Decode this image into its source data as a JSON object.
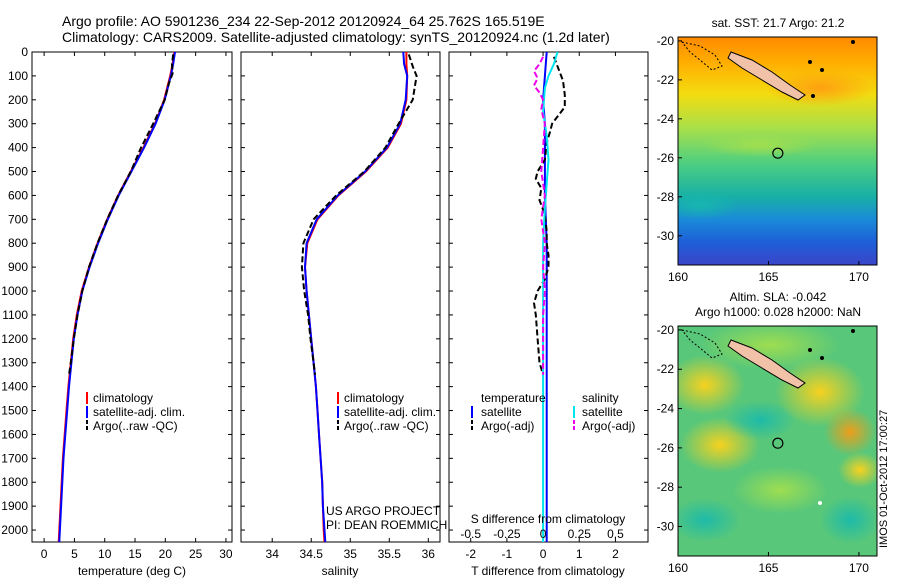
{
  "header": {
    "title_line1": "Argo profile: AO 5901236_234 22-Sep-2012 20120924_64 25.762S 165.519E",
    "title_line2": "Climatology: CARS2009. Satellite-adjusted climatology: synTS_20120924.nc (1.2d later)"
  },
  "timestamp": "IMOS 01-Oct-2012 17:00:27",
  "colors": {
    "climatology": "#ff0000",
    "satellite": "#0000ff",
    "argo": "#000000",
    "s_satellite": "#00e5ee",
    "s_argo": "#ee00ee"
  },
  "panels": {
    "temperature": {
      "xlabel": "temperature (deg C)",
      "legend": [
        "climatology",
        "satellite-adj. clim.",
        "Argo(..raw -QC)"
      ]
    },
    "salinity": {
      "xlabel": "salinity",
      "legend": [
        "climatology",
        "satellite-adj. clim.",
        "Argo(..raw -QC)"
      ],
      "project_line1": "US ARGO PROJECT",
      "project_line2": "PI: DEAN ROEMMICH"
    },
    "difference": {
      "top_label": "S difference from climatology",
      "xlabel": "T difference from climatology",
      "legend_t_header": "temperature",
      "legend_s_header": "salinity",
      "legend_t": [
        "satellite",
        "Argo(-adj)"
      ],
      "legend_s": [
        "satellite",
        "Argo(-adj)"
      ]
    },
    "map_sst": {
      "title": "sat. SST: 21.7 Argo: 21.2"
    },
    "map_sla": {
      "title_line1": "Altim. SLA: -0.042",
      "title_line2": "Argo h1000: 0.028 h2000: NaN"
    }
  },
  "chart_data": [
    {
      "type": "line",
      "name": "temperature-profile",
      "xlabel": "temperature (deg C)",
      "ylabel": "",
      "xlim": [
        -2,
        31
      ],
      "ylim": [
        2050,
        0
      ],
      "x_ticks": [
        0,
        5,
        10,
        15,
        20,
        25,
        30
      ],
      "y_ticks": [
        0,
        100,
        200,
        300,
        400,
        500,
        600,
        700,
        800,
        900,
        1000,
        1100,
        1200,
        1300,
        1400,
        1500,
        1600,
        1700,
        1800,
        1900,
        2000
      ],
      "legend_position": "lower-center",
      "series": [
        {
          "name": "climatology",
          "color": "#ff0000",
          "points": [
            [
              21.5,
              0
            ],
            [
              21.2,
              50
            ],
            [
              20.8,
              100
            ],
            [
              19.8,
              200
            ],
            [
              18.3,
              300
            ],
            [
              16.4,
              400
            ],
            [
              14.3,
              500
            ],
            [
              12.2,
              600
            ],
            [
              10.4,
              700
            ],
            [
              8.8,
              800
            ],
            [
              7.4,
              900
            ],
            [
              6.2,
              1000
            ],
            [
              5.4,
              1100
            ],
            [
              4.8,
              1200
            ],
            [
              4.4,
              1300
            ],
            [
              4.0,
              1400
            ],
            [
              3.7,
              1500
            ],
            [
              3.4,
              1600
            ],
            [
              3.1,
              1700
            ],
            [
              2.9,
              1800
            ],
            [
              2.7,
              1900
            ],
            [
              2.5,
              2000
            ],
            [
              2.4,
              2050
            ]
          ]
        },
        {
          "name": "satellite-adj. clim.",
          "color": "#0000ff",
          "points": [
            [
              21.6,
              0
            ],
            [
              21.3,
              50
            ],
            [
              20.9,
              100
            ],
            [
              19.9,
              200
            ],
            [
              18.4,
              300
            ],
            [
              16.5,
              400
            ],
            [
              14.4,
              500
            ],
            [
              12.3,
              600
            ],
            [
              10.5,
              700
            ],
            [
              8.9,
              800
            ],
            [
              7.5,
              900
            ],
            [
              6.3,
              1000
            ],
            [
              5.5,
              1100
            ],
            [
              4.9,
              1200
            ],
            [
              4.5,
              1300
            ],
            [
              4.1,
              1400
            ],
            [
              3.8,
              1500
            ],
            [
              3.5,
              1600
            ],
            [
              3.2,
              1700
            ],
            [
              3.0,
              1800
            ],
            [
              2.8,
              1900
            ],
            [
              2.6,
              2000
            ],
            [
              2.5,
              2050
            ]
          ]
        },
        {
          "name": "Argo(..raw -QC)",
          "color": "#000000",
          "dashed": true,
          "points": [
            [
              21.3,
              10
            ],
            [
              21.1,
              50
            ],
            [
              21.2,
              90
            ],
            [
              20.6,
              130
            ],
            [
              19.9,
              200
            ],
            [
              18.0,
              300
            ],
            [
              16.0,
              400
            ],
            [
              14.3,
              500
            ],
            [
              12.2,
              600
            ],
            [
              10.4,
              700
            ],
            [
              8.8,
              800
            ],
            [
              7.4,
              900
            ],
            [
              6.3,
              1000
            ],
            [
              5.5,
              1100
            ],
            [
              4.9,
              1200
            ],
            [
              4.4,
              1300
            ],
            [
              4.1,
              1350
            ]
          ]
        }
      ]
    },
    {
      "type": "line",
      "name": "salinity-profile",
      "xlabel": "salinity",
      "ylabel": "",
      "xlim": [
        33.6,
        36.15
      ],
      "ylim": [
        2050,
        0
      ],
      "x_ticks": [
        34,
        34.5,
        35,
        35.5,
        36
      ],
      "legend_position": "lower-center",
      "series": [
        {
          "name": "climatology",
          "color": "#ff0000",
          "points": [
            [
              35.72,
              0
            ],
            [
              35.72,
              50
            ],
            [
              35.73,
              100
            ],
            [
              35.72,
              200
            ],
            [
              35.65,
              300
            ],
            [
              35.48,
              400
            ],
            [
              35.2,
              500
            ],
            [
              34.85,
              600
            ],
            [
              34.58,
              700
            ],
            [
              34.45,
              800
            ],
            [
              34.42,
              900
            ],
            [
              34.44,
              1000
            ],
            [
              34.47,
              1100
            ],
            [
              34.5,
              1200
            ],
            [
              34.53,
              1300
            ],
            [
              34.56,
              1400
            ],
            [
              34.58,
              1500
            ],
            [
              34.6,
              1600
            ],
            [
              34.62,
              1700
            ],
            [
              34.64,
              1800
            ],
            [
              34.65,
              1900
            ],
            [
              34.66,
              2000
            ],
            [
              34.67,
              2050
            ]
          ]
        },
        {
          "name": "satellite-adj. clim.",
          "color": "#0000ff",
          "points": [
            [
              35.68,
              0
            ],
            [
              35.69,
              50
            ],
            [
              35.73,
              100
            ],
            [
              35.71,
              200
            ],
            [
              35.64,
              300
            ],
            [
              35.47,
              400
            ],
            [
              35.19,
              500
            ],
            [
              34.84,
              600
            ],
            [
              34.57,
              700
            ],
            [
              34.44,
              800
            ],
            [
              34.42,
              900
            ],
            [
              34.44,
              1000
            ],
            [
              34.47,
              1100
            ],
            [
              34.5,
              1200
            ],
            [
              34.53,
              1300
            ],
            [
              34.56,
              1400
            ],
            [
              34.58,
              1500
            ],
            [
              34.6,
              1600
            ],
            [
              34.62,
              1700
            ],
            [
              34.64,
              1800
            ],
            [
              34.65,
              1900
            ],
            [
              34.67,
              2000
            ],
            [
              34.68,
              2050
            ]
          ]
        },
        {
          "name": "Argo(..raw -QC)",
          "color": "#000000",
          "dashed": true,
          "points": [
            [
              35.75,
              10
            ],
            [
              35.8,
              60
            ],
            [
              35.85,
              100
            ],
            [
              35.8,
              200
            ],
            [
              35.62,
              300
            ],
            [
              35.45,
              400
            ],
            [
              35.18,
              500
            ],
            [
              34.82,
              600
            ],
            [
              34.53,
              700
            ],
            [
              34.4,
              800
            ],
            [
              34.38,
              900
            ],
            [
              34.41,
              1000
            ],
            [
              34.46,
              1100
            ],
            [
              34.49,
              1200
            ],
            [
              34.53,
              1300
            ],
            [
              34.55,
              1350
            ]
          ]
        }
      ]
    },
    {
      "type": "line",
      "name": "difference-profile",
      "xlabel": "T difference from climatology",
      "top_label": "S difference from climatology",
      "xlim": [
        -2.6,
        2.9
      ],
      "ylim": [
        2050,
        0
      ],
      "x_ticks": [
        -2,
        -1,
        0,
        1,
        2
      ],
      "top_ticks_labels": [
        "-0.5",
        "-0.25",
        "0",
        "0.25",
        "0.5"
      ],
      "top_ticks_values": [
        -2,
        -1,
        0,
        1,
        2
      ],
      "legend_position": "lower-center",
      "series": [
        {
          "name": "temperature satellite",
          "color": "#0000ff",
          "points": [
            [
              0.1,
              0
            ],
            [
              0.05,
              100
            ],
            [
              0,
              200
            ],
            [
              0.05,
              300
            ],
            [
              0.05,
              400
            ],
            [
              0.05,
              600
            ],
            [
              0.1,
              800
            ],
            [
              0.1,
              1000
            ],
            [
              0.1,
              1400
            ],
            [
              0.1,
              2050
            ]
          ]
        },
        {
          "name": "temperature Argo(-adj)",
          "color": "#000000",
          "dashed": true,
          "points": [
            [
              0.3,
              20
            ],
            [
              0.4,
              60
            ],
            [
              0.55,
              120
            ],
            [
              0.6,
              180
            ],
            [
              0.6,
              230
            ],
            [
              0.45,
              260
            ],
            [
              0.25,
              300
            ],
            [
              0.2,
              330
            ],
            [
              0.1,
              380
            ],
            [
              0.05,
              450
            ],
            [
              -0.15,
              500
            ],
            [
              -0.2,
              530
            ],
            [
              -0.05,
              570
            ],
            [
              -0.1,
              620
            ],
            [
              0.05,
              680
            ],
            [
              0.1,
              750
            ],
            [
              0.1,
              800
            ],
            [
              0.15,
              850
            ],
            [
              0.15,
              900
            ],
            [
              0.05,
              950
            ],
            [
              -0.15,
              1000
            ],
            [
              -0.25,
              1050
            ],
            [
              -0.2,
              1100
            ],
            [
              -0.15,
              1200
            ],
            [
              -0.1,
              1300
            ],
            [
              0,
              1350
            ]
          ]
        },
        {
          "name": "salinity satellite",
          "color": "#00e5ee",
          "points": [
            [
              0.4,
              0
            ],
            [
              0.3,
              50
            ],
            [
              0.15,
              100
            ],
            [
              0.05,
              150
            ],
            [
              0,
              250
            ],
            [
              0.1,
              350
            ],
            [
              0.15,
              450
            ],
            [
              0.1,
              550
            ],
            [
              0.05,
              650
            ],
            [
              0,
              800
            ],
            [
              0,
              1000
            ],
            [
              0,
              1400
            ],
            [
              0,
              2050
            ]
          ]
        },
        {
          "name": "salinity Argo(-adj)",
          "color": "#ee00ee",
          "dashed": true,
          "points": [
            [
              0,
              20
            ],
            [
              -0.1,
              50
            ],
            [
              -0.25,
              80
            ],
            [
              -0.15,
              110
            ],
            [
              -0.25,
              140
            ],
            [
              -0.1,
              170
            ],
            [
              0,
              200
            ],
            [
              -0.05,
              240
            ],
            [
              0.05,
              300
            ],
            [
              0,
              400
            ],
            [
              -0.05,
              500
            ],
            [
              0.05,
              600
            ],
            [
              -0.05,
              700
            ],
            [
              0.05,
              800
            ],
            [
              0,
              900
            ],
            [
              0.05,
              1000
            ],
            [
              0,
              1100
            ],
            [
              0,
              1200
            ],
            [
              0,
              1350
            ]
          ]
        }
      ]
    },
    {
      "type": "heatmap",
      "name": "map-sst",
      "title": "sat. SST: 21.7 Argo: 21.2",
      "xlim": [
        160,
        171
      ],
      "ylim": [
        -31.5,
        -19.8
      ],
      "x_ticks": [
        160,
        165,
        170
      ],
      "y_ticks": [
        -20,
        -22,
        -24,
        -26,
        -28,
        -30
      ],
      "marker": {
        "lon": 165.519,
        "lat": -25.762
      }
    },
    {
      "type": "heatmap",
      "name": "map-sla",
      "title": "Altim. SLA: -0.042",
      "subtitle": "Argo h1000: 0.028 h2000: NaN",
      "xlim": [
        160,
        171
      ],
      "ylim": [
        -31.5,
        -19.8
      ],
      "x_ticks": [
        160,
        165,
        170
      ],
      "y_ticks": [
        -20,
        -22,
        -24,
        -26,
        -28,
        -30
      ],
      "marker": {
        "lon": 165.519,
        "lat": -25.762
      }
    }
  ]
}
